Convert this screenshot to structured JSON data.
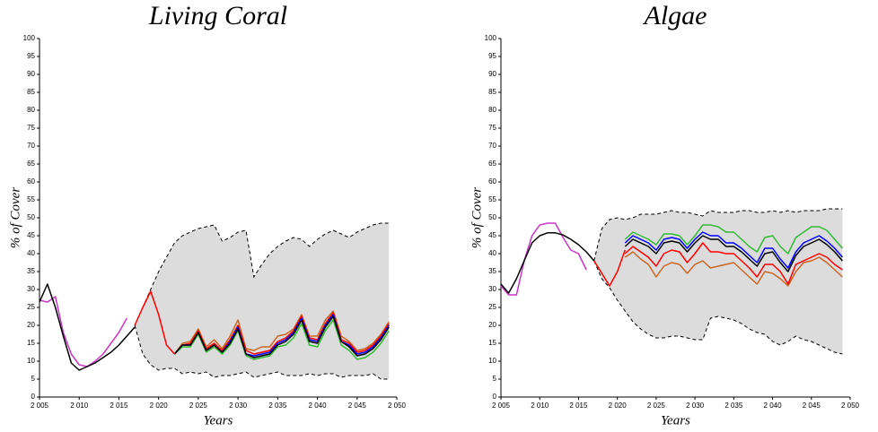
{
  "chart_data": [
    {
      "type": "line",
      "title": "Living Coral",
      "xlabel": "Years",
      "ylabel": "% of Cover",
      "xlim": [
        2005,
        2050
      ],
      "ylim": [
        0,
        100
      ],
      "xticks": [
        {
          "value": 2005,
          "label": "2 005"
        },
        {
          "value": 2010,
          "label": "2 010"
        },
        {
          "value": 2015,
          "label": "2 015"
        },
        {
          "value": 2020,
          "label": "2 020"
        },
        {
          "value": 2025,
          "label": "2 025"
        },
        {
          "value": 2030,
          "label": "2 030"
        },
        {
          "value": 2035,
          "label": "2 035"
        },
        {
          "value": 2040,
          "label": "2 040"
        },
        {
          "value": 2045,
          "label": "2 045"
        },
        {
          "value": 2050,
          "label": "2 050"
        }
      ],
      "yticks": [
        0,
        5,
        10,
        15,
        20,
        25,
        30,
        35,
        40,
        45,
        50,
        55,
        60,
        65,
        70,
        75,
        80,
        85,
        90,
        95,
        100
      ],
      "envelope": {
        "color": "#dcdcdc",
        "x": [
          2017,
          2018,
          2019,
          2020,
          2021,
          2022,
          2023,
          2024,
          2025,
          2026,
          2027,
          2028,
          2029,
          2030,
          2031,
          2032,
          2033,
          2034,
          2035,
          2036,
          2037,
          2038,
          2039,
          2040,
          2041,
          2042,
          2043,
          2044,
          2045,
          2046,
          2047,
          2048,
          2049
        ],
        "upper": [
          20,
          25,
          30,
          35,
          39,
          43,
          45,
          46,
          47,
          47.5,
          48,
          43.5,
          44.5,
          46,
          46.5,
          33.5,
          37,
          40,
          42,
          43.5,
          44.5,
          44,
          42,
          44,
          45.5,
          46.5,
          45.5,
          44.5,
          46,
          47,
          48,
          48.5,
          48.5
        ],
        "lower": [
          20,
          12,
          9,
          7.5,
          8,
          8,
          6.5,
          7,
          6.5,
          7,
          5.5,
          6,
          6,
          6.5,
          7,
          5.5,
          6,
          6.5,
          7,
          6,
          6,
          6,
          6.5,
          6,
          6.5,
          6.5,
          5.5,
          6,
          6,
          6,
          6.5,
          5,
          5
        ]
      },
      "series": [
        {
          "color": "#cc6622",
          "x": [
            2022,
            2023,
            2024,
            2025,
            2026,
            2027,
            2028,
            2029,
            2030,
            2031,
            2032,
            2033,
            2034,
            2035,
            2036,
            2037,
            2038,
            2039,
            2040,
            2041,
            2042,
            2043,
            2044,
            2045,
            2046,
            2047,
            2048,
            2049
          ],
          "values": [
            12,
            15,
            15.5,
            19,
            14,
            16,
            13.5,
            17,
            21.5,
            13.5,
            13,
            14,
            14,
            17,
            17.5,
            19,
            23,
            17,
            17,
            21.5,
            24,
            17,
            15.5,
            13,
            13.5,
            15,
            17.5,
            21
          ]
        },
        {
          "color": "#ff0000",
          "x": [
            2022,
            2023,
            2024,
            2025,
            2026,
            2027,
            2028,
            2029,
            2030,
            2031,
            2032,
            2033,
            2034,
            2035,
            2036,
            2037,
            2038,
            2039,
            2040,
            2041,
            2042,
            2043,
            2044,
            2045,
            2046,
            2047,
            2048,
            2049
          ],
          "values": [
            12,
            14.5,
            15,
            18.5,
            13.5,
            15,
            13,
            16,
            20,
            13,
            12,
            12.5,
            13,
            15.5,
            16.5,
            18.5,
            22.5,
            16.5,
            16,
            20.5,
            23.5,
            16,
            15,
            12.5,
            13,
            14.5,
            17,
            20.5
          ]
        },
        {
          "color": "#33bb33",
          "x": [
            2022,
            2023,
            2024,
            2025,
            2026,
            2027,
            2028,
            2029,
            2030,
            2031,
            2032,
            2033,
            2034,
            2035,
            2036,
            2037,
            2038,
            2039,
            2040,
            2041,
            2042,
            2043,
            2044,
            2045,
            2046,
            2047,
            2048,
            2049
          ],
          "values": [
            12,
            14,
            14,
            17.5,
            12.5,
            14,
            12,
            14.5,
            18.5,
            11.5,
            10.5,
            11,
            11.5,
            14,
            14.5,
            16.5,
            20.5,
            14.5,
            14,
            18.5,
            21.5,
            14.5,
            13,
            10.5,
            11,
            12.5,
            15,
            18.5
          ]
        },
        {
          "color": "#0000ff",
          "x": [
            2022,
            2023,
            2024,
            2025,
            2026,
            2027,
            2028,
            2029,
            2030,
            2031,
            2032,
            2033,
            2034,
            2035,
            2036,
            2037,
            2038,
            2039,
            2040,
            2041,
            2042,
            2043,
            2044,
            2045,
            2046,
            2047,
            2048,
            2049
          ],
          "values": [
            12,
            14.5,
            14.5,
            18,
            13,
            14.5,
            12.5,
            15.5,
            19.5,
            12,
            11.5,
            12,
            12.5,
            15,
            16,
            18,
            22,
            16,
            15.5,
            20,
            23,
            15.5,
            14.5,
            12,
            12.5,
            14,
            16.5,
            20
          ]
        },
        {
          "color": "#000000",
          "x": [
            2022,
            2023,
            2024,
            2025,
            2026,
            2027,
            2028,
            2029,
            2030,
            2031,
            2032,
            2033,
            2034,
            2035,
            2036,
            2037,
            2038,
            2039,
            2040,
            2041,
            2042,
            2043,
            2044,
            2045,
            2046,
            2047,
            2048,
            2049
          ],
          "values": [
            12,
            14.5,
            14.5,
            18,
            13,
            14.5,
            12.5,
            15,
            19,
            12,
            11,
            11.5,
            12,
            14.5,
            15.5,
            17.5,
            21.5,
            15.5,
            15,
            19.5,
            22.5,
            15.5,
            14,
            11.5,
            12,
            13.5,
            16,
            19.5
          ]
        },
        {
          "color": "#ff0000",
          "x": [
            2017,
            2018,
            2019,
            2020,
            2021,
            2022
          ],
          "values": [
            20,
            25,
            29.5,
            23,
            14.5,
            12
          ]
        },
        {
          "color": "#cc33cc",
          "x": [
            2005,
            2006,
            2007,
            2008,
            2009,
            2010,
            2011,
            2012,
            2013,
            2014,
            2015,
            2016
          ],
          "values": [
            27,
            26.5,
            28,
            18,
            12,
            9,
            8.5,
            10,
            12,
            15,
            18,
            22
          ]
        },
        {
          "color": "#000000",
          "x": [
            2005,
            2006,
            2007,
            2008,
            2009,
            2010,
            2011,
            2012,
            2013,
            2014,
            2015,
            2016,
            2017
          ],
          "values": [
            26.5,
            31.5,
            25,
            17,
            9.5,
            7.5,
            8.5,
            9.5,
            11,
            12.5,
            14.5,
            17,
            19.5
          ]
        }
      ]
    },
    {
      "type": "line",
      "title": "Algae",
      "xlabel": "Years",
      "ylabel": "% of Cover",
      "xlim": [
        2005,
        2050
      ],
      "ylim": [
        0,
        100
      ],
      "xticks": [
        {
          "value": 2005,
          "label": "2 005"
        },
        {
          "value": 2010,
          "label": "2 010"
        },
        {
          "value": 2015,
          "label": "2 015"
        },
        {
          "value": 2020,
          "label": "2 020"
        },
        {
          "value": 2025,
          "label": "2 025"
        },
        {
          "value": 2030,
          "label": "2 030"
        },
        {
          "value": 2035,
          "label": "2 035"
        },
        {
          "value": 2040,
          "label": "2 040"
        },
        {
          "value": 2045,
          "label": "2 045"
        },
        {
          "value": 2050,
          "label": "2 050"
        }
      ],
      "yticks": [
        0,
        5,
        10,
        15,
        20,
        25,
        30,
        35,
        40,
        45,
        50,
        55,
        60,
        65,
        70,
        75,
        80,
        85,
        90,
        95,
        100
      ],
      "envelope": {
        "color": "#dcdcdc",
        "x": [
          2017,
          2018,
          2019,
          2020,
          2021,
          2022,
          2023,
          2024,
          2025,
          2026,
          2027,
          2028,
          2029,
          2030,
          2031,
          2032,
          2033,
          2034,
          2035,
          2036,
          2037,
          2038,
          2039,
          2040,
          2041,
          2042,
          2043,
          2044,
          2045,
          2046,
          2047,
          2048,
          2049
        ],
        "upper": [
          38,
          47,
          49.5,
          50,
          49.5,
          50,
          51,
          51,
          51,
          51.5,
          52,
          51.5,
          51.5,
          51,
          50.5,
          52,
          51.5,
          51.5,
          51.5,
          52,
          52,
          51.5,
          51.5,
          52,
          51.5,
          52,
          51.5,
          52,
          52,
          52,
          52.5,
          52.5,
          52.5
        ],
        "lower": [
          38,
          33,
          30.5,
          27,
          24,
          21,
          19,
          17.5,
          16.5,
          16.5,
          17,
          17,
          16.5,
          16,
          16,
          22,
          22.5,
          22,
          21.5,
          20.5,
          19,
          18,
          17.5,
          15.5,
          14.5,
          15.5,
          17,
          16,
          15.5,
          14.5,
          13.5,
          12.5,
          12
        ]
      },
      "series": [
        {
          "color": "#cc6622",
          "x": [
            2021,
            2022,
            2023,
            2024,
            2025,
            2026,
            2027,
            2028,
            2029,
            2030,
            2031,
            2032,
            2033,
            2034,
            2035,
            2036,
            2037,
            2038,
            2039,
            2040,
            2041,
            2042,
            2043,
            2044,
            2045,
            2046,
            2047,
            2048,
            2049
          ],
          "values": [
            39,
            40.5,
            38.5,
            37,
            33.5,
            36.5,
            37.5,
            37,
            34.5,
            37,
            38,
            36,
            36.5,
            37,
            37.5,
            35.5,
            33.5,
            31.5,
            35,
            34.5,
            33,
            31,
            35,
            37.5,
            38,
            39,
            37.5,
            35.5,
            33.5
          ]
        },
        {
          "color": "#ff0000",
          "x": [
            2021,
            2022,
            2023,
            2024,
            2025,
            2026,
            2027,
            2028,
            2029,
            2030,
            2031,
            2032,
            2033,
            2034,
            2035,
            2036,
            2037,
            2038,
            2039,
            2040,
            2041,
            2042,
            2043,
            2044,
            2045,
            2046,
            2047,
            2048,
            2049
          ],
          "values": [
            40,
            42,
            40.5,
            39,
            36.5,
            40,
            41,
            40.5,
            37.5,
            40,
            43,
            40.5,
            40.5,
            40,
            40,
            38,
            36,
            33.5,
            37,
            37,
            35,
            31.5,
            37,
            38,
            39,
            40,
            39,
            37,
            35.5
          ]
        },
        {
          "color": "#33bb33",
          "x": [
            2021,
            2022,
            2023,
            2024,
            2025,
            2026,
            2027,
            2028,
            2029,
            2030,
            2031,
            2032,
            2033,
            2034,
            2035,
            2036,
            2037,
            2038,
            2039,
            2040,
            2041,
            2042,
            2043,
            2044,
            2045,
            2046,
            2047,
            2048,
            2049
          ],
          "values": [
            44,
            46,
            45,
            44,
            42.5,
            45.5,
            45.5,
            45,
            42.5,
            45,
            48,
            48,
            47.5,
            46,
            46,
            44,
            42,
            40.5,
            44.5,
            45,
            42,
            40,
            44.5,
            46,
            47.5,
            47.5,
            46.5,
            44,
            41.5
          ]
        },
        {
          "color": "#0000ff",
          "x": [
            2021,
            2022,
            2023,
            2024,
            2025,
            2026,
            2027,
            2028,
            2029,
            2030,
            2031,
            2032,
            2033,
            2034,
            2035,
            2036,
            2037,
            2038,
            2039,
            2040,
            2041,
            2042,
            2043,
            2044,
            2045,
            2046,
            2047,
            2048,
            2049
          ],
          "values": [
            43,
            45,
            44,
            43,
            41,
            44,
            44.5,
            44,
            41.5,
            44,
            46,
            45,
            45,
            43,
            43,
            41.5,
            39.5,
            37.5,
            41.5,
            41.5,
            38.5,
            36,
            40.5,
            43,
            44,
            45,
            43.5,
            41.5,
            39
          ]
        },
        {
          "color": "#000000",
          "x": [
            2021,
            2022,
            2023,
            2024,
            2025,
            2026,
            2027,
            2028,
            2029,
            2030,
            2031,
            2032,
            2033,
            2034,
            2035,
            2036,
            2037,
            2038,
            2039,
            2040,
            2041,
            2042,
            2043,
            2044,
            2045,
            2046,
            2047,
            2048,
            2049
          ],
          "values": [
            42,
            44,
            43,
            42,
            40,
            43,
            43.5,
            43,
            40.5,
            43,
            45,
            44,
            44,
            42,
            42,
            40.5,
            38.5,
            36.5,
            40,
            40.5,
            37.5,
            35,
            39.5,
            42,
            43,
            44,
            42.5,
            40.5,
            38
          ]
        },
        {
          "color": "#ff0000",
          "x": [
            2017,
            2018,
            2019,
            2020,
            2021
          ],
          "values": [
            38,
            34.5,
            31,
            35,
            41
          ]
        },
        {
          "color": "#cc33cc",
          "x": [
            2005,
            2006,
            2007,
            2008,
            2009,
            2010,
            2011,
            2012,
            2013,
            2014,
            2015,
            2016
          ],
          "values": [
            31,
            28.5,
            28.5,
            38,
            45,
            48,
            48.5,
            48.5,
            44.5,
            41,
            40,
            35.5
          ]
        },
        {
          "color": "#000000",
          "x": [
            2005,
            2006,
            2007,
            2008,
            2009,
            2010,
            2011,
            2012,
            2013,
            2014,
            2015,
            2016,
            2017
          ],
          "values": [
            31.5,
            29,
            33,
            38,
            43,
            45,
            45.8,
            45.8,
            45.2,
            44,
            42.5,
            40.5,
            38
          ]
        }
      ]
    }
  ]
}
